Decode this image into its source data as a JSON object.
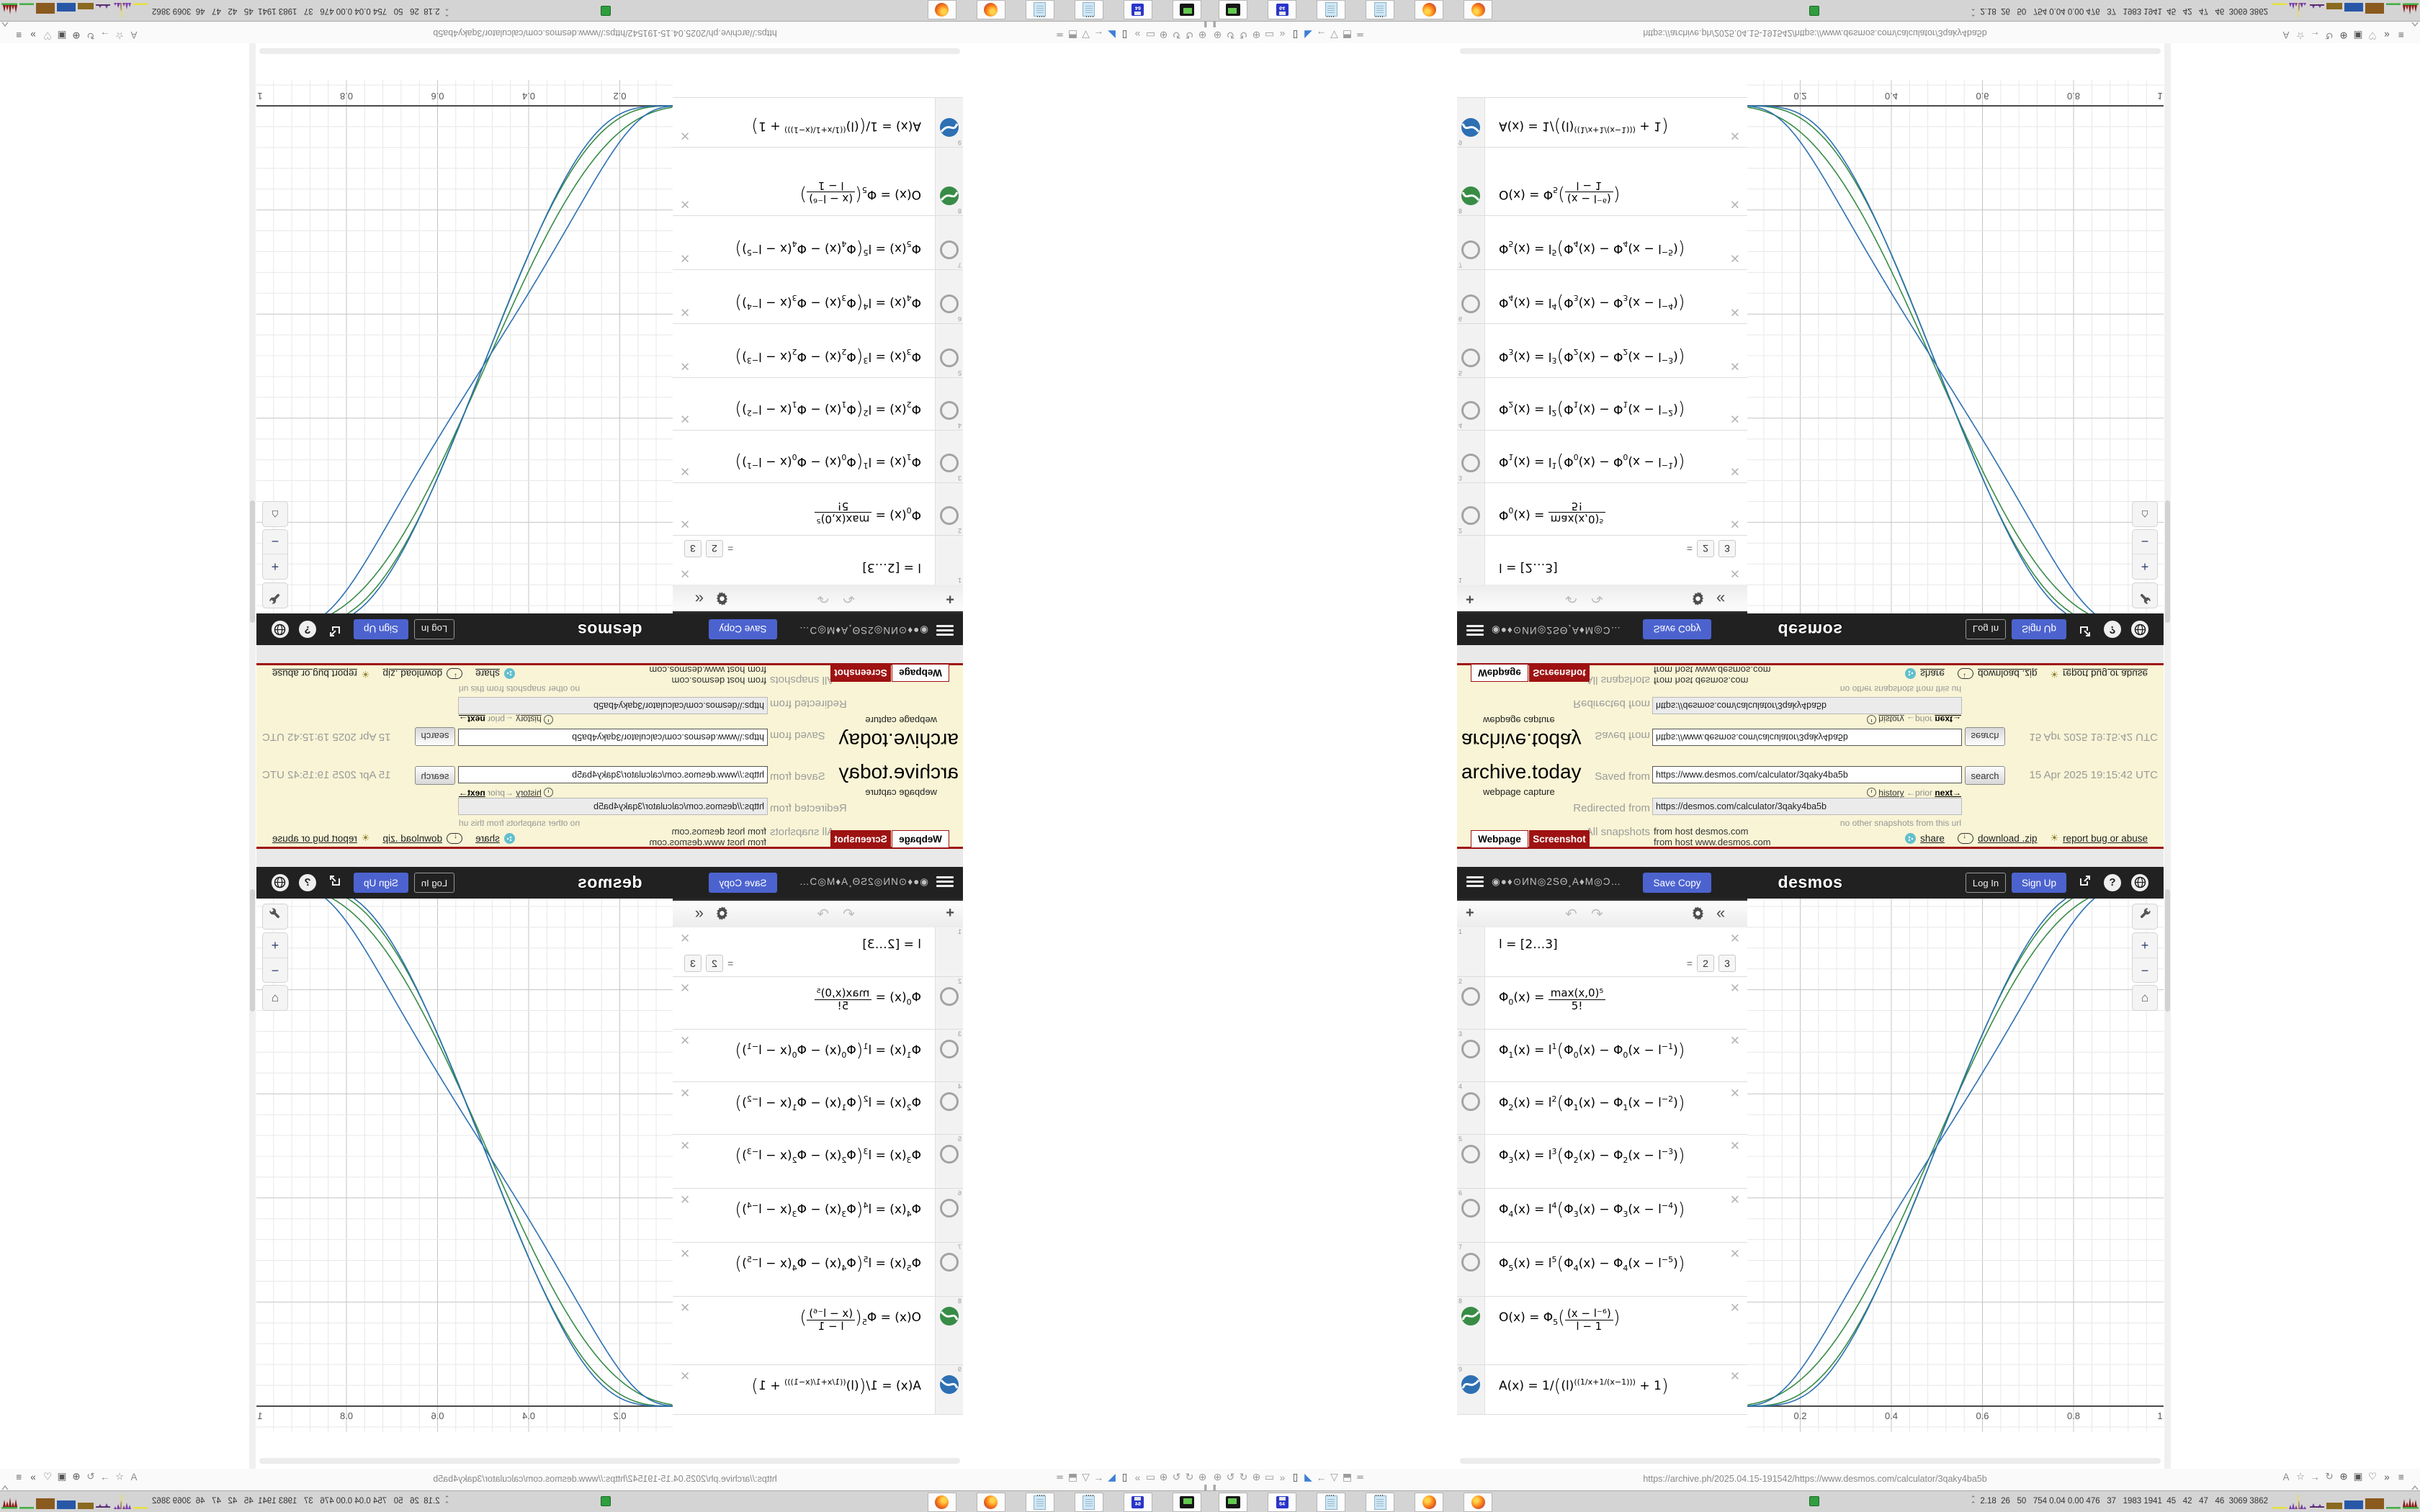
{
  "archive": {
    "logo": "archive.today",
    "tagline": "webpage capture",
    "saved_label": "Saved from",
    "saved_url": "https://www.desmos.com/calculator/3qaky4ba5b",
    "search_label": "search",
    "history_label": "history",
    "prior_label": "←prior",
    "next_label": "next→",
    "redirected_label": "Redirected from",
    "redirected_url": "https://desmos.com/calculator/3qaky4ba5b",
    "no_other": "no other snapshots from this url",
    "all_snapshots_label": "All snapshots",
    "host1": "from host desmos.com",
    "host2": "from host www.desmos.com",
    "date": "15 Apr 2025 19:15:42 UTC",
    "tab_webpage": "Webpage",
    "tab_screenshot": "Screenshot",
    "share_label": "share",
    "download_label": "download .zip",
    "report_label": "report bug or abuse"
  },
  "desmos": {
    "title": "◉●♦⊙ИN◎2SΘ¸A♦M◎Ɔ…",
    "save_copy": "Save Copy",
    "wordmark": "desmos",
    "login": "Log In",
    "signup": "Sign Up"
  },
  "expressions": {
    "rows": [
      {
        "n": "1",
        "icon": "none",
        "h": 68,
        "parts": [
          {
            "t": "t",
            "v": "l = [2…3]"
          }
        ],
        "chips": [
          "2",
          "3"
        ]
      },
      {
        "n": "2",
        "icon": "ring",
        "h": 72,
        "parts": [
          {
            "t": "t",
            "v": "Φ"
          },
          {
            "t": "b",
            "v": "0"
          },
          {
            "t": "t",
            "v": "(x) = "
          },
          {
            "t": "f",
            "n": "max(x,0)⁵",
            "d": "5!"
          }
        ]
      },
      {
        "n": "3",
        "icon": "ring",
        "h": 72,
        "parts": [
          {
            "t": "t",
            "v": "Φ"
          },
          {
            "t": "b",
            "v": "1"
          },
          {
            "t": "t",
            "v": "(x) = l"
          },
          {
            "t": "p",
            "v": "1"
          },
          {
            "t": "g",
            "v": "("
          },
          {
            "t": "t",
            "v": "Φ"
          },
          {
            "t": "b",
            "v": "0"
          },
          {
            "t": "t",
            "v": "(x) − Φ"
          },
          {
            "t": "b",
            "v": "0"
          },
          {
            "t": "t",
            "v": "(x − l"
          },
          {
            "t": "p",
            "v": "−1"
          },
          {
            "t": "t",
            "v": ")"
          },
          {
            "t": "g",
            "v": ")"
          }
        ]
      },
      {
        "n": "4",
        "icon": "ring",
        "h": 72,
        "parts": [
          {
            "t": "t",
            "v": "Φ"
          },
          {
            "t": "b",
            "v": "2"
          },
          {
            "t": "t",
            "v": "(x) = l"
          },
          {
            "t": "p",
            "v": "2"
          },
          {
            "t": "g",
            "v": "("
          },
          {
            "t": "t",
            "v": "Φ"
          },
          {
            "t": "b",
            "v": "1"
          },
          {
            "t": "t",
            "v": "(x) − Φ"
          },
          {
            "t": "b",
            "v": "1"
          },
          {
            "t": "t",
            "v": "(x − l"
          },
          {
            "t": "p",
            "v": "−2"
          },
          {
            "t": "t",
            "v": ")"
          },
          {
            "t": "g",
            "v": ")"
          }
        ]
      },
      {
        "n": "5",
        "icon": "ring",
        "h": 74,
        "parts": [
          {
            "t": "t",
            "v": "Φ"
          },
          {
            "t": "b",
            "v": "3"
          },
          {
            "t": "t",
            "v": "(x) = l"
          },
          {
            "t": "p",
            "v": "3"
          },
          {
            "t": "g",
            "v": "("
          },
          {
            "t": "t",
            "v": "Φ"
          },
          {
            "t": "b",
            "v": "2"
          },
          {
            "t": "t",
            "v": "(x) − Φ"
          },
          {
            "t": "b",
            "v": "2"
          },
          {
            "t": "t",
            "v": "(x − l"
          },
          {
            "t": "p",
            "v": "−3"
          },
          {
            "t": "t",
            "v": ")"
          },
          {
            "t": "g",
            "v": ")"
          }
        ]
      },
      {
        "n": "6",
        "icon": "ring",
        "h": 74,
        "parts": [
          {
            "t": "t",
            "v": "Φ"
          },
          {
            "t": "b",
            "v": "4"
          },
          {
            "t": "t",
            "v": "(x) = l"
          },
          {
            "t": "p",
            "v": "4"
          },
          {
            "t": "g",
            "v": "("
          },
          {
            "t": "t",
            "v": "Φ"
          },
          {
            "t": "b",
            "v": "3"
          },
          {
            "t": "t",
            "v": "(x) − Φ"
          },
          {
            "t": "b",
            "v": "3"
          },
          {
            "t": "t",
            "v": "(x − l"
          },
          {
            "t": "p",
            "v": "−4"
          },
          {
            "t": "t",
            "v": ")"
          },
          {
            "t": "g",
            "v": ")"
          }
        ]
      },
      {
        "n": "7",
        "icon": "ring",
        "h": 74,
        "parts": [
          {
            "t": "t",
            "v": "Φ"
          },
          {
            "t": "b",
            "v": "5"
          },
          {
            "t": "t",
            "v": "(x) = l"
          },
          {
            "t": "p",
            "v": "5"
          },
          {
            "t": "g",
            "v": "("
          },
          {
            "t": "t",
            "v": "Φ"
          },
          {
            "t": "b",
            "v": "4"
          },
          {
            "t": "t",
            "v": "(x) − Φ"
          },
          {
            "t": "b",
            "v": "4"
          },
          {
            "t": "t",
            "v": "(x − l"
          },
          {
            "t": "p",
            "v": "−5"
          },
          {
            "t": "t",
            "v": ")"
          },
          {
            "t": "g",
            "v": ")"
          }
        ]
      },
      {
        "n": "8",
        "icon": "disc",
        "color": "#388c46",
        "h": 94,
        "parts": [
          {
            "t": "t",
            "v": "O(x) = Φ"
          },
          {
            "t": "b",
            "v": "5"
          },
          {
            "t": "g",
            "v": "("
          },
          {
            "t": "f",
            "n": "(x − l⁻⁶)",
            "d": "l − 1"
          },
          {
            "t": "g",
            "v": ")"
          }
        ]
      },
      {
        "n": "9",
        "icon": "disc",
        "color": "#2d70b3",
        "h": 68,
        "parts": [
          {
            "t": "t",
            "v": "A(x) = 1/"
          },
          {
            "t": "g",
            "v": "("
          },
          {
            "t": "t",
            "v": "(l)"
          },
          {
            "t": "p",
            "v": "((1/x+1/(x−1)))"
          },
          {
            "t": "t",
            "v": " + 1"
          },
          {
            "t": "g",
            "v": ")"
          }
        ]
      }
    ]
  },
  "chart_data": {
    "type": "line",
    "title": "",
    "xlabel": "x",
    "ylabel": "",
    "xlim": [
      0.084,
      1.017
    ],
    "ylim": [
      -0.046,
      0.975
    ],
    "x_ticks": [
      "0.2",
      "0.4",
      "0.6",
      "0.8",
      "1"
    ],
    "x_tick_values": [
      0.2,
      0.4,
      0.6,
      0.8,
      1.0
    ],
    "grid": {
      "minor_step": 0.04,
      "major_step": 0.2,
      "minor_color": "#e8e8e8",
      "major_color": "#c4c4c4"
    },
    "axis_color": "#4a4a4a",
    "legend": "none",
    "series": [
      {
        "name": "O(x), l=2",
        "color": "#388c46",
        "type": "quintic_smoothstep",
        "domain": [
          0.02,
          0.97
        ]
      },
      {
        "name": "O(x), l=3",
        "color": "#388c46",
        "type": "quintic_smoothstep",
        "domain": [
          0.08,
          0.92
        ]
      },
      {
        "name": "A(x), l=2",
        "color": "#2d70b3",
        "type": "A_sigmoid",
        "l": 2
      },
      {
        "name": "A(x), l=3",
        "color": "#2d70b3",
        "type": "A_sigmoid",
        "l": 3
      }
    ]
  },
  "browser": {
    "url": "https://archive.ph/2025.04.15-191542/https://www.desmos.com/calculator/3qaky4ba5b",
    "toolbar_icons": [
      "zoom-circle-icon",
      "undo-arc-icon",
      "redo-arc-icon",
      "globe-icon",
      "folder-icon",
      "chevrons-icon",
      "trash-icon",
      "bookmark-flag-icon",
      "back-arrow-icon",
      "shield-icon",
      "lock-icon",
      "sliders-icon"
    ],
    "right_icons": [
      "translate-icon",
      "star-icon",
      "arrow-icon",
      "refresh-icon",
      "globe-dark-icon",
      "badge-icon",
      "thumb-icon",
      "more-chevrons-icon",
      "menu-icon"
    ]
  },
  "taskbar": {
    "apps": [
      "terminal",
      "floppy64",
      "notepad",
      "notepad",
      "firefox",
      "firefox"
    ],
    "floppy_label": "64",
    "stats": "2.18  26   50   754 0.04 0.00 476   37   1983 1941  45   42   47   46  3069 3862",
    "tray_graphs": [
      "yellow-line",
      "purple-spikes",
      "flat-line",
      "olive-bar",
      "blue-bar",
      "brown-bar",
      "green-line",
      "red-spikes"
    ]
  }
}
